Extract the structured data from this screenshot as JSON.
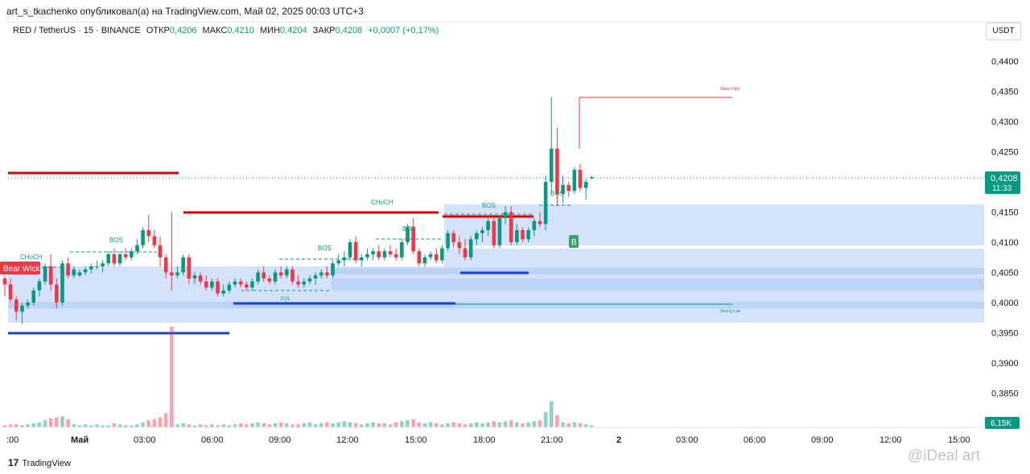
{
  "header": {
    "text": "art_s_tkachenko опубликовал(а) на TradingView.com, Май 02, 2025 00:03 UTC+3"
  },
  "legend": {
    "symbol": "RED / TetherUS · 15 · BINANCE",
    "open_label": "ОТКР",
    "open": "0,4206",
    "high_label": "МАКС",
    "high": "0,4210",
    "low_label": "МИН",
    "low": "0,4204",
    "close_label": "ЗАКР",
    "close": "0,4208",
    "change": "+0,0007 (+0,17%)"
  },
  "currency_button": "USDT",
  "price_scale": [
    "0,4400",
    "0,4350",
    "0,4300",
    "0,4250",
    "0,4200",
    "0,4150",
    "0,4100",
    "0,4050",
    "0,4000",
    "0,3950",
    "0,3900",
    "0,3850"
  ],
  "price_badge": {
    "price": "0,4208",
    "countdown": "11:33",
    "color": "#089981"
  },
  "volume_badge": {
    "text": "6,15K",
    "color": "#089981"
  },
  "time_axis": [
    ":00",
    "Май",
    "03:00",
    "06:00",
    "09:00",
    "12:00",
    "15:00",
    "18:00",
    "21:00",
    "2",
    "03:00",
    "06:00",
    "09:00",
    "12:00",
    "15:00"
  ],
  "annotations": {
    "bear_wick": "Bear Wick",
    "choch_left": "CHoCH",
    "bos_1": "BOS",
    "bos_2": "BOS",
    "bos_3": "BOS",
    "choch_mid": "CHoCH",
    "bos_4": "BOS",
    "bos_5": "BOS",
    "eql": "EQL",
    "weak_high": "Weak High",
    "strong_low": "Strong Low",
    "b_marker": "B"
  },
  "colors": {
    "up": "#089981",
    "down": "#f23645",
    "zone": "#d4e2fb",
    "zone_strong": "#bcd2f7",
    "red_line": "#d50000",
    "blue_line": "#1e3fd6"
  },
  "footer": {
    "logo": "TradingView",
    "watermark": "@iDeal art"
  },
  "chart_data": {
    "type": "candlestick",
    "symbol": "RED / TetherUS",
    "interval": "15",
    "ylim": [
      0.381,
      0.443
    ],
    "candles": [
      [
        0.404,
        0.4045,
        0.401,
        0.403
      ],
      [
        0.403,
        0.404,
        0.4,
        0.4005
      ],
      [
        0.4005,
        0.401,
        0.397,
        0.3985
      ],
      [
        0.3985,
        0.4,
        0.3965,
        0.3995
      ],
      [
        0.3995,
        0.4005,
        0.399,
        0.4
      ],
      [
        0.4,
        0.4025,
        0.3995,
        0.402
      ],
      [
        0.402,
        0.404,
        0.401,
        0.4035
      ],
      [
        0.4035,
        0.4065,
        0.403,
        0.406
      ],
      [
        0.406,
        0.408,
        0.402,
        0.403
      ],
      [
        0.403,
        0.404,
        0.399,
        0.4
      ],
      [
        0.4,
        0.407,
        0.3995,
        0.4065
      ],
      [
        0.4065,
        0.4075,
        0.404,
        0.4045
      ],
      [
        0.4045,
        0.406,
        0.404,
        0.4055
      ],
      [
        0.4045,
        0.4055,
        0.4042,
        0.405
      ],
      [
        0.405,
        0.406,
        0.4045,
        0.4055
      ],
      [
        0.4055,
        0.4065,
        0.4048,
        0.406
      ],
      [
        0.406,
        0.407,
        0.4055,
        0.406
      ],
      [
        0.406,
        0.407,
        0.405,
        0.4065
      ],
      [
        0.4065,
        0.4085,
        0.406,
        0.408
      ],
      [
        0.408,
        0.409,
        0.406,
        0.4065
      ],
      [
        0.4065,
        0.4085,
        0.406,
        0.408
      ],
      [
        0.408,
        0.409,
        0.407,
        0.4075
      ],
      [
        0.4075,
        0.409,
        0.407,
        0.4085
      ],
      [
        0.4085,
        0.4105,
        0.408,
        0.4095
      ],
      [
        0.4095,
        0.4125,
        0.409,
        0.412
      ],
      [
        0.412,
        0.4145,
        0.41,
        0.411
      ],
      [
        0.411,
        0.412,
        0.409,
        0.4095
      ],
      [
        0.4095,
        0.411,
        0.406,
        0.4075
      ],
      [
        0.4075,
        0.408,
        0.404,
        0.405
      ],
      [
        0.405,
        0.415,
        0.402,
        0.4045
      ],
      [
        0.4045,
        0.406,
        0.404,
        0.405
      ],
      [
        0.405,
        0.408,
        0.4045,
        0.4075
      ],
      [
        0.4075,
        0.408,
        0.403,
        0.404
      ],
      [
        0.404,
        0.405,
        0.403,
        0.4045
      ],
      [
        0.4045,
        0.405,
        0.403,
        0.4035
      ],
      [
        0.4035,
        0.4045,
        0.402,
        0.4025
      ],
      [
        0.4025,
        0.404,
        0.402,
        0.4035
      ],
      [
        0.4035,
        0.404,
        0.401,
        0.4015
      ],
      [
        0.4015,
        0.403,
        0.401,
        0.402
      ],
      [
        0.402,
        0.4035,
        0.4015,
        0.403
      ],
      [
        0.403,
        0.404,
        0.4025,
        0.4035
      ],
      [
        0.4035,
        0.404,
        0.4025,
        0.403
      ],
      [
        0.403,
        0.4035,
        0.402,
        0.4025
      ],
      [
        0.4025,
        0.404,
        0.402,
        0.4035
      ],
      [
        0.4035,
        0.4055,
        0.403,
        0.405
      ],
      [
        0.405,
        0.406,
        0.4035,
        0.404
      ],
      [
        0.404,
        0.4045,
        0.403,
        0.4035
      ],
      [
        0.4035,
        0.4055,
        0.403,
        0.405
      ],
      [
        0.405,
        0.406,
        0.404,
        0.4045
      ],
      [
        0.4045,
        0.406,
        0.404,
        0.4055
      ],
      [
        0.4055,
        0.406,
        0.403,
        0.4035
      ],
      [
        0.4035,
        0.4045,
        0.4025,
        0.403
      ],
      [
        0.403,
        0.404,
        0.4025,
        0.4035
      ],
      [
        0.4035,
        0.4045,
        0.403,
        0.404
      ],
      [
        0.404,
        0.405,
        0.403,
        0.4045
      ],
      [
        0.4045,
        0.4055,
        0.404,
        0.405
      ],
      [
        0.405,
        0.406,
        0.404,
        0.4045
      ],
      [
        0.4045,
        0.407,
        0.404,
        0.4065
      ],
      [
        0.4065,
        0.408,
        0.406,
        0.407
      ],
      [
        0.407,
        0.4085,
        0.406,
        0.4075
      ],
      [
        0.4075,
        0.4105,
        0.407,
        0.41
      ],
      [
        0.41,
        0.411,
        0.4065,
        0.407
      ],
      [
        0.407,
        0.408,
        0.406,
        0.4075
      ],
      [
        0.4075,
        0.409,
        0.407,
        0.408
      ],
      [
        0.408,
        0.409,
        0.407,
        0.4085
      ],
      [
        0.4085,
        0.4095,
        0.407,
        0.4075
      ],
      [
        0.4075,
        0.409,
        0.407,
        0.4085
      ],
      [
        0.4085,
        0.4095,
        0.4075,
        0.408
      ],
      [
        0.408,
        0.409,
        0.407,
        0.4075
      ],
      [
        0.4075,
        0.4105,
        0.407,
        0.41
      ],
      [
        0.41,
        0.413,
        0.4095,
        0.4125
      ],
      [
        0.4125,
        0.414,
        0.408,
        0.4085
      ],
      [
        0.4085,
        0.409,
        0.406,
        0.4065
      ],
      [
        0.4065,
        0.408,
        0.406,
        0.4075
      ],
      [
        0.4075,
        0.4085,
        0.407,
        0.408
      ],
      [
        0.408,
        0.409,
        0.4065,
        0.407
      ],
      [
        0.407,
        0.4095,
        0.4065,
        0.409
      ],
      [
        0.409,
        0.412,
        0.4085,
        0.4115
      ],
      [
        0.4115,
        0.412,
        0.409,
        0.41
      ],
      [
        0.41,
        0.411,
        0.408,
        0.409
      ],
      [
        0.409,
        0.4105,
        0.407,
        0.4075
      ],
      [
        0.4075,
        0.411,
        0.407,
        0.4105
      ],
      [
        0.4105,
        0.412,
        0.4095,
        0.4115
      ],
      [
        0.4115,
        0.4125,
        0.41,
        0.412
      ],
      [
        0.412,
        0.414,
        0.411,
        0.4135
      ],
      [
        0.4135,
        0.414,
        0.409,
        0.4095
      ],
      [
        0.4095,
        0.4145,
        0.409,
        0.414
      ],
      [
        0.414,
        0.416,
        0.413,
        0.415
      ],
      [
        0.415,
        0.416,
        0.4095,
        0.41
      ],
      [
        0.41,
        0.413,
        0.4095,
        0.412
      ],
      [
        0.412,
        0.4125,
        0.41,
        0.4105
      ],
      [
        0.4105,
        0.4125,
        0.41,
        0.412
      ],
      [
        0.412,
        0.414,
        0.411,
        0.4135
      ],
      [
        0.4135,
        0.415,
        0.4125,
        0.413
      ],
      [
        0.413,
        0.421,
        0.412,
        0.42
      ],
      [
        0.42,
        0.434,
        0.418,
        0.4255
      ],
      [
        0.4255,
        0.429,
        0.416,
        0.418
      ],
      [
        0.418,
        0.421,
        0.4165,
        0.4195
      ],
      [
        0.4195,
        0.42,
        0.4175,
        0.4185
      ],
      [
        0.4185,
        0.4225,
        0.418,
        0.422
      ],
      [
        0.422,
        0.423,
        0.4185,
        0.419
      ],
      [
        0.419,
        0.4205,
        0.417,
        0.42
      ],
      [
        0.4206,
        0.421,
        0.4204,
        0.4208
      ]
    ],
    "volume_levels_relative": [
      0.02,
      0.03,
      0.03,
      0.02,
      0.03,
      0.04,
      0.05,
      0.07,
      0.09,
      0.1,
      0.11,
      0.08,
      0.03,
      0.02,
      0.03,
      0.02,
      0.03,
      0.02,
      0.02,
      0.04,
      0.03,
      0.02,
      0.02,
      0.03,
      0.05,
      0.07,
      0.08,
      0.1,
      0.14,
      1.0,
      0.03,
      0.04,
      0.03,
      0.02,
      0.03,
      0.02,
      0.03,
      0.02,
      0.03,
      0.02,
      0.03,
      0.04,
      0.03,
      0.04,
      0.05,
      0.04,
      0.03,
      0.04,
      0.05,
      0.04,
      0.03,
      0.03,
      0.04,
      0.05,
      0.03,
      0.04,
      0.05,
      0.04,
      0.05,
      0.06,
      0.05,
      0.04,
      0.03,
      0.04,
      0.05,
      0.04,
      0.04,
      0.03,
      0.05,
      0.06,
      0.07,
      0.08,
      0.05,
      0.04,
      0.05,
      0.04,
      0.03,
      0.04,
      0.05,
      0.04,
      0.03,
      0.04,
      0.05,
      0.04,
      0.05,
      0.06,
      0.05,
      0.06,
      0.07,
      0.05,
      0.04,
      0.05,
      0.06,
      0.07,
      0.15,
      0.26,
      0.12,
      0.05,
      0.04,
      0.05,
      0.04,
      0.03,
      0.02
    ]
  }
}
